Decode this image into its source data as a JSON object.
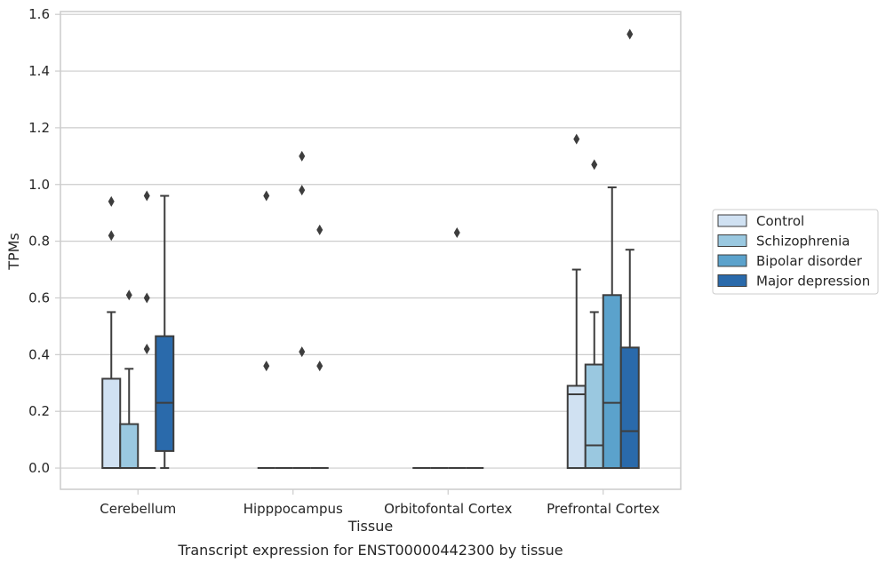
{
  "caption": "Transcript expression for ENST00000442300 by tissue",
  "chart_data": {
    "type": "box",
    "title": "",
    "xlabel": "Tissue",
    "ylabel": "TPMs",
    "ylim": [
      -0.075,
      1.61
    ],
    "yticks": [
      0.0,
      0.2,
      0.4,
      0.6,
      0.8,
      1.0,
      1.2,
      1.4,
      1.6
    ],
    "ytick_labels": [
      "0.0",
      "0.2",
      "0.4",
      "0.6",
      "0.8",
      "1.0",
      "1.2",
      "1.4",
      "1.6"
    ],
    "grid": "horizontal",
    "legend_position": "right",
    "categories": [
      "Cerebellum",
      "Hipppocampus",
      "Orbitofontal Cortex",
      "Prefrontal Cortex"
    ],
    "series": [
      {
        "name": "Control",
        "color": "#d0e1f2",
        "boxes": [
          {
            "q1": 0.0,
            "median": 0.0,
            "q3": 0.315,
            "whisker_low": 0.0,
            "whisker_high": 0.55,
            "outliers": [
              0.82,
              0.94
            ]
          },
          {
            "q1": 0.0,
            "median": 0.0,
            "q3": 0.0,
            "whisker_low": 0.0,
            "whisker_high": 0.0,
            "outliers": [
              0.36,
              0.96
            ]
          },
          {
            "q1": 0.0,
            "median": 0.0,
            "q3": 0.0,
            "whisker_low": 0.0,
            "whisker_high": 0.0,
            "outliers": []
          },
          {
            "q1": 0.0,
            "median": 0.26,
            "q3": 0.29,
            "whisker_low": 0.0,
            "whisker_high": 0.7,
            "outliers": [
              1.16
            ]
          }
        ]
      },
      {
        "name": "Schizophrenia",
        "color": "#9ac8e0",
        "boxes": [
          {
            "q1": 0.0,
            "median": 0.0,
            "q3": 0.155,
            "whisker_low": 0.0,
            "whisker_high": 0.35,
            "outliers": [
              0.61
            ]
          },
          {
            "q1": 0.0,
            "median": 0.0,
            "q3": 0.0,
            "whisker_low": 0.0,
            "whisker_high": 0.0,
            "outliers": []
          },
          {
            "q1": 0.0,
            "median": 0.0,
            "q3": 0.0,
            "whisker_low": 0.0,
            "whisker_high": 0.0,
            "outliers": []
          },
          {
            "q1": 0.0,
            "median": 0.08,
            "q3": 0.365,
            "whisker_low": 0.0,
            "whisker_high": 0.55,
            "outliers": [
              1.07
            ]
          }
        ]
      },
      {
        "name": "Bipolar disorder",
        "color": "#5ba2cc",
        "boxes": [
          {
            "q1": 0.0,
            "median": 0.0,
            "q3": 0.0,
            "whisker_low": 0.0,
            "whisker_high": 0.0,
            "outliers": [
              0.42,
              0.6,
              0.96
            ]
          },
          {
            "q1": 0.0,
            "median": 0.0,
            "q3": 0.0,
            "whisker_low": 0.0,
            "whisker_high": 0.0,
            "outliers": [
              0.41,
              0.98,
              1.1
            ]
          },
          {
            "q1": 0.0,
            "median": 0.0,
            "q3": 0.0,
            "whisker_low": 0.0,
            "whisker_high": 0.0,
            "outliers": [
              0.83
            ]
          },
          {
            "q1": 0.0,
            "median": 0.23,
            "q3": 0.61,
            "whisker_low": 0.0,
            "whisker_high": 0.99,
            "outliers": []
          }
        ]
      },
      {
        "name": "Major depression",
        "color": "#2a6aab",
        "boxes": [
          {
            "q1": 0.06,
            "median": 0.23,
            "q3": 0.465,
            "whisker_low": 0.0,
            "whisker_high": 0.96,
            "outliers": []
          },
          {
            "q1": 0.0,
            "median": 0.0,
            "q3": 0.0,
            "whisker_low": 0.0,
            "whisker_high": 0.0,
            "outliers": [
              0.36,
              0.84
            ]
          },
          {
            "q1": 0.0,
            "median": 0.0,
            "q3": 0.0,
            "whisker_low": 0.0,
            "whisker_high": 0.0,
            "outliers": []
          },
          {
            "q1": 0.0,
            "median": 0.13,
            "q3": 0.425,
            "whisker_low": 0.0,
            "whisker_high": 0.77,
            "outliers": [
              1.53
            ]
          }
        ]
      }
    ]
  }
}
